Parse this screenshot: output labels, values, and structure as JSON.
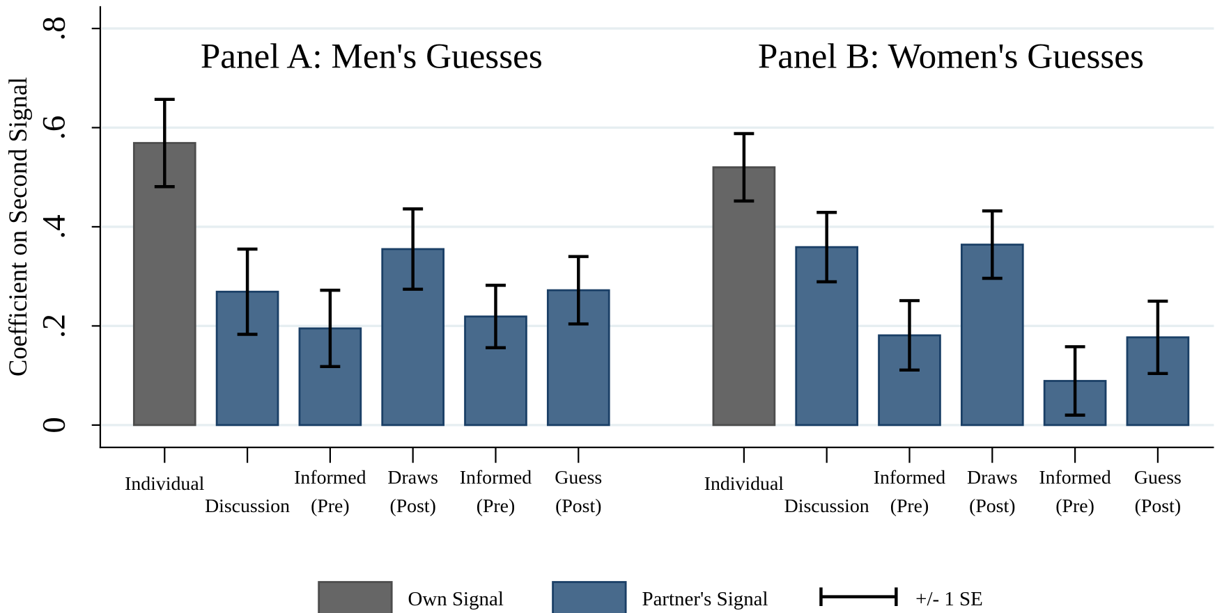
{
  "chart_data": {
    "type": "bar",
    "ylabel": "Coefficient on Second Signal",
    "panel_titles": [
      "Panel A: Men's Guesses",
      "Panel B: Women's Guesses"
    ],
    "categories": [
      [
        "Individual"
      ],
      [
        "Discussion"
      ],
      [
        "Informed",
        "(Pre)"
      ],
      [
        "Draws",
        "(Post)"
      ],
      [
        "Informed",
        "(Pre)"
      ],
      [
        "Guess",
        "(Post)"
      ],
      [
        "Individual"
      ],
      [
        "Discussion"
      ],
      [
        "Informed",
        "(Pre)"
      ],
      [
        "Draws",
        "(Post)"
      ],
      [
        "Informed",
        "(Pre)"
      ],
      [
        "Guess",
        "(Post)"
      ]
    ],
    "series": [
      {
        "name": "Own Signal",
        "color": "#666666",
        "edge": "#4d4d4d",
        "values": [
          0.569,
          null,
          null,
          null,
          null,
          null,
          0.52,
          null,
          null,
          null,
          null,
          null
        ],
        "errors": [
          0.088,
          null,
          null,
          null,
          null,
          null,
          0.068,
          null,
          null,
          null,
          null,
          null
        ]
      },
      {
        "name": "Partner's Signal",
        "color": "#486a8c",
        "edge": "#1a3f66",
        "values": [
          null,
          0.269,
          0.195,
          0.355,
          0.219,
          0.272,
          null,
          0.359,
          0.181,
          0.364,
          0.089,
          0.177
        ],
        "errors": [
          null,
          0.086,
          0.077,
          0.081,
          0.063,
          0.068,
          null,
          0.07,
          0.07,
          0.068,
          0.069,
          0.073
        ]
      }
    ],
    "error_label": "+/- 1 SE",
    "ylim": [
      -0.045,
      0.845
    ],
    "yticks": [
      0,
      {
        "value": 0.2,
        "label": ".2"
      },
      {
        "value": 0.4,
        "label": ".4"
      },
      {
        "value": 0.6,
        "label": ".6"
      },
      {
        "value": 0.8,
        "label": ".8"
      }
    ],
    "grid": true
  }
}
